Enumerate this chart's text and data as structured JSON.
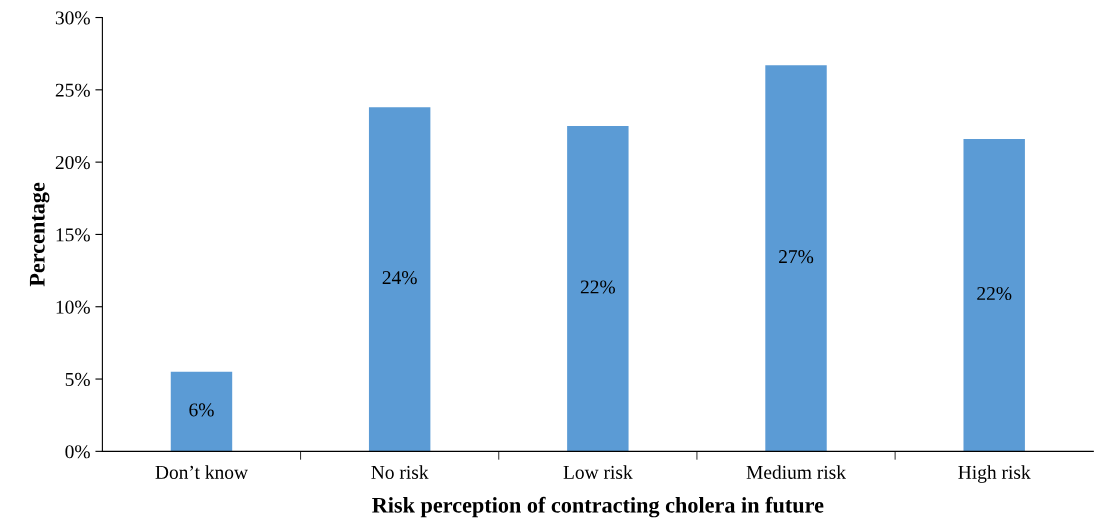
{
  "chart_data": {
    "type": "bar",
    "xlabel": "Risk perception of contracting cholera in future",
    "ylabel": "Percentage",
    "categories": [
      "Don’t know",
      "No risk",
      "Low risk",
      "Medium risk",
      "High risk"
    ],
    "values": [
      5.5,
      23.8,
      22.5,
      26.7,
      21.6
    ],
    "value_labels": [
      "6%",
      "24%",
      "22%",
      "27%",
      "22%"
    ],
    "color": "#5b9bd5",
    "ylim": [
      0,
      30
    ],
    "yticks": [
      {
        "value": 0,
        "label": "0%"
      },
      {
        "value": 5,
        "label": "5%"
      },
      {
        "value": 10,
        "label": "10%"
      },
      {
        "value": 15,
        "label": "15%"
      },
      {
        "value": 20,
        "label": "20%"
      },
      {
        "value": 25,
        "label": "25%"
      },
      {
        "value": 30,
        "label": "30%"
      }
    ],
    "grid": false,
    "legend": false
  }
}
